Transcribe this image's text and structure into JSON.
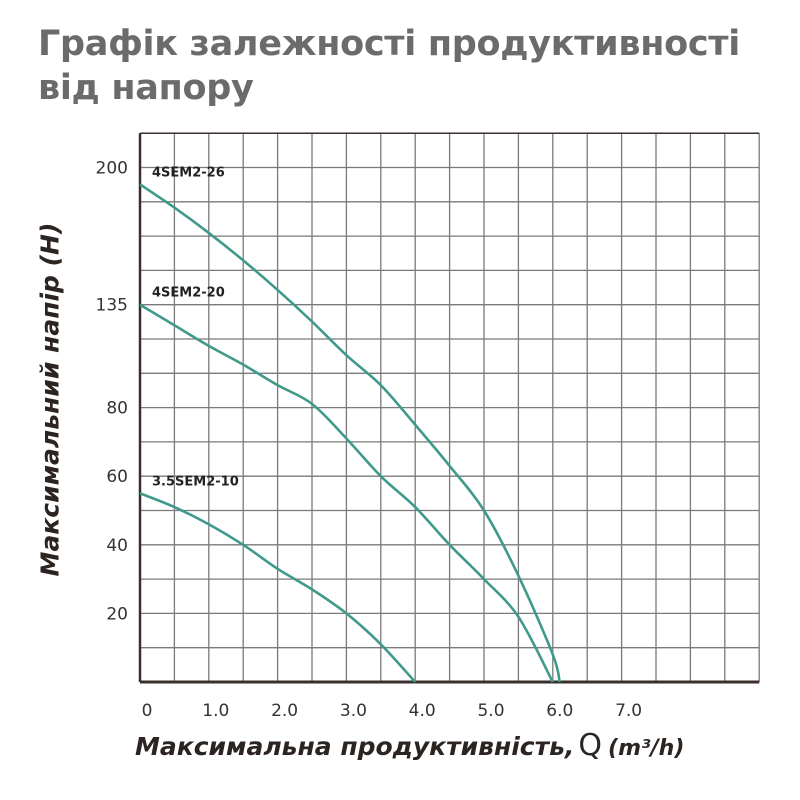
{
  "title": "Графік залежності продуктивності від напору",
  "chart_data": {
    "type": "line",
    "title": "Графік залежності продуктивності від напору",
    "xlabel": "Максимальна продуктивність,",
    "xlabel_symbol": "Q",
    "xlabel_unit": "(m³/h)",
    "ylabel": "Максимальний напір (H)",
    "x_tick_labels": [
      "0",
      "1.0",
      "2.0",
      "3.0",
      "4.0",
      "5.0",
      "6.0",
      "7.0"
    ],
    "x_ticks": [
      0,
      1,
      2,
      3,
      4,
      5,
      6,
      7
    ],
    "y_tick_labels": [
      "20",
      "40",
      "60",
      "80",
      "135",
      "200"
    ],
    "y_ticks": [
      20,
      40,
      60,
      80,
      135,
      200
    ],
    "xlim": [
      0,
      9
    ],
    "grid": true,
    "line_color": "#3f9a8b",
    "grid_color": "#7a7a7a",
    "axis_color": "#3a2f2a",
    "series": [
      {
        "name": "4SEM2-26",
        "x": [
          0,
          0.5,
          1,
          1.5,
          2,
          2.5,
          3,
          3.5,
          4,
          4.5,
          5,
          5.5,
          6,
          6.1
        ],
        "y": [
          192,
          181,
          169,
          156,
          142,
          126,
          108,
          92,
          75,
          63,
          50,
          31,
          8,
          0
        ]
      },
      {
        "name": "4SEM2-20",
        "x": [
          0,
          0.5,
          1,
          1.5,
          2,
          2.5,
          3,
          3.5,
          4,
          4.5,
          5,
          5.5,
          6
        ],
        "y": [
          135,
          124,
          113,
          103,
          92,
          82,
          71,
          60,
          51,
          40,
          30,
          19,
          0
        ]
      },
      {
        "name": "3.5SEM2-10",
        "x": [
          0,
          0.5,
          1,
          1.5,
          2,
          2.5,
          3,
          3.5,
          4
        ],
        "y": [
          55,
          51,
          46,
          40,
          33,
          27,
          20,
          11,
          0
        ]
      }
    ]
  }
}
